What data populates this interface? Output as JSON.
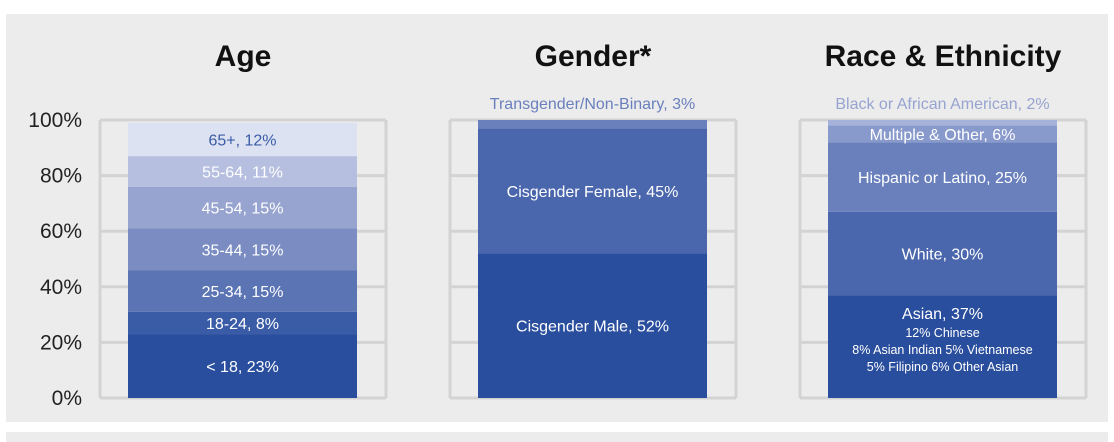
{
  "chart_data": {
    "type": "stacked-bar",
    "ylim": [
      0,
      100
    ],
    "yticks": [
      "100%",
      "80%",
      "60%",
      "40%",
      "20%",
      "0%"
    ],
    "grid": true,
    "panels": [
      {
        "title": "Age",
        "segments": [
          {
            "label": "< 18, 23%",
            "value": 23,
            "color": "#2a4e9e"
          },
          {
            "label": "18-24, 8%",
            "value": 8,
            "color": "#3a5ca6"
          },
          {
            "label": "25-34, 15%",
            "value": 15,
            "color": "#5a74b4"
          },
          {
            "label": "35-44, 15%",
            "value": 15,
            "color": "#7a8cc2"
          },
          {
            "label": "45-54, 15%",
            "value": 15,
            "color": "#97a4d0"
          },
          {
            "label": "55-64, 11%",
            "value": 11,
            "color": "#b6bfe0"
          },
          {
            "label": "65+, 12%",
            "value": 12,
            "color": "#dde2f2",
            "text_color": "#3a5ca6"
          }
        ]
      },
      {
        "title": "Gender*",
        "segments": [
          {
            "label": "Cisgender Male, 52%",
            "value": 52,
            "color": "#2a4e9e"
          },
          {
            "label": "Cisgender Female, 45%",
            "value": 45,
            "color": "#4a66ad"
          },
          {
            "label": "Transgender/Non-Binary, 3%",
            "value": 3,
            "color": "#6a80bd",
            "label_outside": true,
            "text_color": "#6a80bd"
          }
        ]
      },
      {
        "title": "Race & Ethnicity",
        "segments": [
          {
            "label": "Asian, 37%",
            "value": 37,
            "color": "#2a4e9e",
            "sublabels": [
              "12% Chinese",
              "8% Asian Indian   5% Vietnamese",
              "5% Filipino   6% Other Asian"
            ]
          },
          {
            "label": "White, 30%",
            "value": 30,
            "color": "#4a66ad"
          },
          {
            "label": "Hispanic or Latino, 25%",
            "value": 25,
            "color": "#6a80bd"
          },
          {
            "label": "Multiple & Other, 6%",
            "value": 6,
            "color": "#8899cc"
          },
          {
            "label": "Black or African American, 2%",
            "value": 2,
            "color": "#a7b2da",
            "label_outside": true,
            "text_color": "#97a4d0"
          }
        ]
      }
    ]
  }
}
